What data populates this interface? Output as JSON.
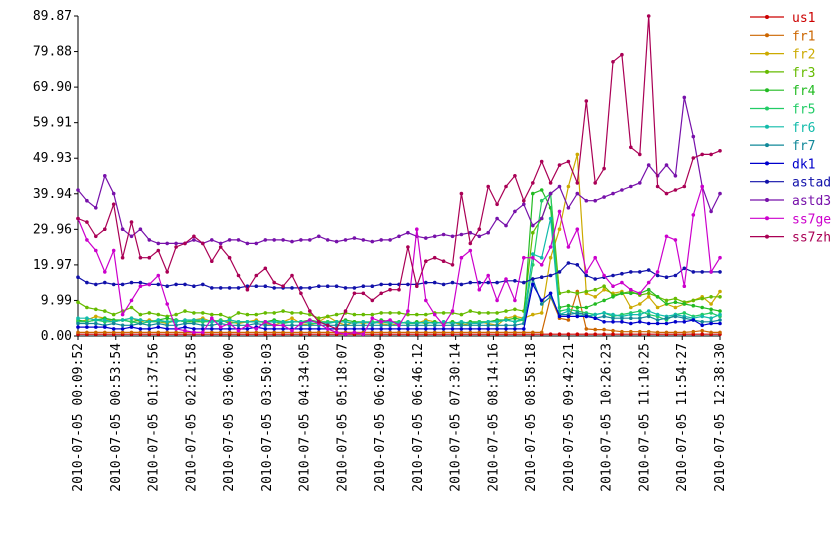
{
  "chart_data": {
    "type": "line",
    "title": "",
    "xlabel": "",
    "ylabel": "",
    "ylim": [
      0,
      89.87
    ],
    "y_ticks": [
      "0.00",
      "9.99",
      "19.97",
      "29.96",
      "39.94",
      "49.93",
      "59.91",
      "69.90",
      "79.88",
      "89.87"
    ],
    "x_tick_labels": [
      "2010-07-05 00:09:52",
      "2010-07-05 00:53:54",
      "2010-07-05 01:37:56",
      "2010-07-05 02:21:58",
      "2010-07-05 03:06:00",
      "2010-07-05 03:50:03",
      "2010-07-05 04:34:05",
      "2010-07-05 05:18:07",
      "2010-07-05 06:02:09",
      "2010-07-05 06:46:12",
      "2010-07-05 07:30:14",
      "2010-07-05 08:14:16",
      "2010-07-05 08:58:18",
      "2010-07-05 09:42:21",
      "2010-07-05 10:26:23",
      "2010-07-05 11:10:25",
      "2010-07-05 11:54:27",
      "2010-07-05 12:38:30"
    ],
    "grid": false,
    "legend_position": "right",
    "n_points": 73,
    "series": [
      {
        "name": "us1",
        "color": "#cc0000",
        "values": [
          0.5,
          0.5,
          0.5,
          0.5,
          0.5,
          0.5,
          0.5,
          0.5,
          0.5,
          0.5,
          0.5,
          0.5,
          0.5,
          0.5,
          0.5,
          0.5,
          0.5,
          0.5,
          0.5,
          0.5,
          0.5,
          0.5,
          0.5,
          0.5,
          0.5,
          0.5,
          0.5,
          0.5,
          0.5,
          0.5,
          0.5,
          0.5,
          0.5,
          0.5,
          0.5,
          0.5,
          0.5,
          0.5,
          0.5,
          0.5,
          0.5,
          0.5,
          0.5,
          0.5,
          0.5,
          0.5,
          0.5,
          0.5,
          0.5,
          0.5,
          0.5,
          0.5,
          0.5,
          0.5,
          0.5,
          0.5,
          0.5,
          0.5,
          0.5,
          0.5,
          0.5,
          0.5,
          0.5,
          0.5,
          0.5,
          0.5,
          0.5,
          0.5,
          0.5,
          0.5,
          0.5,
          0.5,
          0.5
        ]
      },
      {
        "name": "fr1",
        "color": "#cc6600",
        "values": [
          1.0,
          1.0,
          1.0,
          1.0,
          1.0,
          1.0,
          1.0,
          1.0,
          1.0,
          1.0,
          1.0,
          1.0,
          1.0,
          1.0,
          1.0,
          1.0,
          1.0,
          1.0,
          1.0,
          1.0,
          1.0,
          1.0,
          1.0,
          1.0,
          1.0,
          1.0,
          1.0,
          1.0,
          1.0,
          1.0,
          1.0,
          1.0,
          1.0,
          1.0,
          1.0,
          1.0,
          1.0,
          1.0,
          1.0,
          1.0,
          1.0,
          1.0,
          1.0,
          1.0,
          1.0,
          1.0,
          1.0,
          1.0,
          1.0,
          1.0,
          1.0,
          1.0,
          1.0,
          11.0,
          5.0,
          4.5,
          12.5,
          2.0,
          1.8,
          1.8,
          1.5,
          1.2,
          1.2,
          1.2,
          1.2,
          1.0,
          1.0,
          1.0,
          1.0,
          1.2,
          1.5,
          1.0,
          1.0
        ]
      },
      {
        "name": "fr2",
        "color": "#ccaa00",
        "values": [
          4.0,
          4.5,
          5.5,
          5.0,
          4.0,
          4.5,
          5.0,
          4.0,
          4.5,
          4.0,
          3.5,
          4.5,
          4.0,
          4.5,
          5.0,
          4.0,
          4.5,
          4.0,
          3.5,
          4.0,
          4.5,
          3.5,
          3.0,
          4.0,
          5.0,
          3.5,
          3.0,
          4.0,
          5.5,
          4.0,
          3.0,
          4.0,
          3.5,
          4.0,
          3.5,
          3.0,
          3.5,
          4.0,
          3.5,
          4.5,
          4.0,
          3.5,
          4.0,
          3.0,
          3.5,
          4.0,
          3.5,
          3.0,
          5.0,
          5.5,
          5.0,
          6.0,
          6.5,
          22.0,
          30.0,
          42.0,
          51.0,
          12.0,
          11.0,
          13.0,
          12.0,
          12.5,
          8.0,
          9.0,
          11.0,
          8.0,
          9.0,
          8.0,
          9.0,
          10.0,
          11.0,
          9.0,
          12.5
        ]
      },
      {
        "name": "fr3",
        "color": "#66bb00",
        "values": [
          9.5,
          8.0,
          7.5,
          7.0,
          6.0,
          7.0,
          8.0,
          6.0,
          6.5,
          6.0,
          5.5,
          6.0,
          7.0,
          6.5,
          6.5,
          6.0,
          6.0,
          5.0,
          6.5,
          6.0,
          6.0,
          6.5,
          6.5,
          7.0,
          6.5,
          6.5,
          6.0,
          5.0,
          5.5,
          6.0,
          6.5,
          6.0,
          6.0,
          6.0,
          6.5,
          6.5,
          6.5,
          6.0,
          6.0,
          6.0,
          6.5,
          6.5,
          6.5,
          6.0,
          7.0,
          6.5,
          6.5,
          6.5,
          7.0,
          7.5,
          7.0,
          29.0,
          33.0,
          40.0,
          12.0,
          12.5,
          12.0,
          12.5,
          13.0,
          14.0,
          11.5,
          12.0,
          12.5,
          11.5,
          12.0,
          11.0,
          10.0,
          10.5,
          9.5,
          10.0,
          10.5,
          11.0,
          11.0
        ]
      },
      {
        "name": "fr4",
        "color": "#22bb22",
        "values": [
          4.5,
          4.0,
          4.5,
          5.0,
          4.5,
          4.5,
          4.0,
          4.5,
          4.0,
          4.5,
          5.0,
          4.5,
          4.0,
          4.0,
          4.0,
          4.5,
          4.0,
          4.5,
          4.0,
          4.0,
          4.0,
          4.0,
          4.5,
          4.0,
          4.0,
          4.0,
          4.5,
          4.0,
          4.0,
          4.0,
          4.5,
          4.0,
          4.0,
          3.5,
          4.5,
          4.0,
          4.0,
          3.5,
          4.0,
          3.5,
          4.0,
          3.5,
          4.0,
          3.5,
          4.0,
          4.0,
          4.0,
          4.5,
          4.5,
          5.0,
          4.5,
          40.0,
          41.0,
          36.0,
          8.0,
          8.5,
          8.0,
          8.0,
          9.0,
          10.0,
          11.0,
          12.0,
          12.0,
          12.0,
          13.0,
          11.0,
          9.0,
          9.5,
          9.0,
          8.5,
          8.0,
          7.5,
          7.0
        ]
      },
      {
        "name": "fr5",
        "color": "#22cc66",
        "values": [
          4.0,
          4.0,
          4.5,
          4.0,
          4.0,
          4.5,
          4.0,
          3.5,
          4.0,
          4.0,
          4.0,
          4.5,
          4.0,
          4.5,
          4.0,
          4.0,
          4.5,
          3.5,
          4.0,
          4.0,
          4.0,
          4.0,
          4.0,
          3.5,
          4.0,
          4.0,
          3.5,
          3.5,
          4.0,
          4.0,
          4.0,
          3.5,
          4.0,
          4.0,
          4.0,
          3.5,
          4.0,
          3.5,
          3.5,
          4.0,
          3.5,
          4.0,
          3.5,
          4.0,
          3.5,
          4.0,
          4.0,
          4.0,
          4.5,
          4.0,
          4.5,
          20.0,
          38.0,
          40.0,
          7.0,
          7.5,
          7.0,
          6.5,
          6.0,
          6.5,
          5.5,
          6.0,
          6.5,
          7.0,
          6.0,
          5.5,
          4.5,
          6.0,
          6.5,
          5.5,
          6.0,
          6.5,
          5.5
        ]
      },
      {
        "name": "fr6",
        "color": "#11bbaa",
        "values": [
          5.0,
          5.0,
          4.5,
          4.5,
          4.0,
          4.5,
          5.0,
          4.5,
          4.0,
          4.5,
          4.0,
          4.0,
          4.5,
          4.5,
          4.5,
          4.0,
          4.0,
          4.5,
          4.0,
          4.0,
          4.0,
          4.0,
          4.0,
          4.0,
          4.0,
          4.0,
          4.0,
          4.0,
          3.5,
          4.0,
          4.0,
          3.5,
          4.0,
          3.5,
          4.0,
          4.0,
          3.5,
          4.0,
          3.5,
          4.0,
          3.5,
          4.0,
          3.5,
          4.0,
          3.5,
          3.5,
          4.0,
          4.0,
          4.5,
          4.0,
          5.0,
          23.0,
          22.0,
          33.0,
          6.0,
          7.0,
          6.0,
          5.5,
          6.0,
          6.5,
          6.0,
          5.5,
          6.0,
          6.0,
          7.0,
          6.0,
          5.5,
          6.0,
          5.5,
          5.0,
          5.5,
          5.0,
          6.0
        ]
      },
      {
        "name": "fr7",
        "color": "#118899",
        "values": [
          3.5,
          3.5,
          3.5,
          3.0,
          3.5,
          3.0,
          3.0,
          3.5,
          3.0,
          3.5,
          3.0,
          3.0,
          3.5,
          3.5,
          3.0,
          3.0,
          3.5,
          3.0,
          3.0,
          3.0,
          3.5,
          3.0,
          3.0,
          3.0,
          3.0,
          3.0,
          3.0,
          3.0,
          3.0,
          3.0,
          3.0,
          3.0,
          3.0,
          3.0,
          3.0,
          3.0,
          3.0,
          3.0,
          3.0,
          3.0,
          3.0,
          3.0,
          3.0,
          3.0,
          3.0,
          3.0,
          3.0,
          3.0,
          3.0,
          3.0,
          3.5,
          16.0,
          9.0,
          11.0,
          6.0,
          6.0,
          6.5,
          6.0,
          5.0,
          5.5,
          5.0,
          5.0,
          5.0,
          5.0,
          5.5,
          4.5,
          5.0,
          5.5,
          5.0,
          4.5,
          4.0,
          4.0,
          4.5
        ]
      },
      {
        "name": "dk1",
        "color": "#0000cc",
        "values": [
          2.5,
          2.5,
          2.5,
          2.5,
          2.0,
          2.0,
          2.5,
          2.0,
          2.0,
          2.5,
          2.0,
          2.0,
          2.5,
          2.0,
          2.0,
          2.0,
          2.0,
          2.0,
          2.0,
          2.0,
          2.5,
          2.0,
          2.0,
          2.0,
          2.0,
          2.0,
          2.0,
          2.0,
          2.0,
          2.0,
          2.0,
          2.0,
          2.0,
          2.0,
          2.0,
          2.0,
          2.0,
          2.0,
          2.0,
          2.0,
          2.0,
          2.0,
          2.0,
          2.0,
          2.0,
          2.0,
          2.0,
          2.0,
          2.0,
          2.0,
          2.0,
          14.5,
          10.0,
          12.0,
          5.5,
          5.5,
          5.5,
          5.5,
          5.0,
          4.0,
          4.0,
          4.0,
          3.5,
          4.0,
          3.5,
          3.5,
          3.5,
          4.0,
          4.0,
          4.5,
          3.0,
          3.5,
          3.5
        ]
      },
      {
        "name": "astad",
        "color": "#1111aa",
        "values": [
          16.5,
          15.0,
          14.5,
          15.0,
          14.5,
          14.5,
          15.0,
          15.0,
          14.5,
          14.5,
          14.0,
          14.5,
          14.5,
          14.0,
          14.5,
          13.5,
          13.5,
          13.5,
          13.5,
          14.0,
          14.0,
          14.0,
          13.5,
          13.5,
          13.5,
          13.5,
          13.5,
          14.0,
          14.0,
          14.0,
          13.5,
          13.5,
          14.0,
          14.0,
          14.5,
          14.5,
          14.5,
          14.5,
          14.5,
          15.0,
          15.0,
          14.5,
          15.0,
          14.5,
          15.0,
          15.0,
          15.0,
          15.0,
          15.5,
          15.5,
          15.0,
          16.0,
          16.5,
          17.0,
          18.0,
          20.5,
          20.0,
          17.0,
          16.0,
          16.5,
          17.0,
          17.5,
          18.0,
          18.0,
          18.5,
          17.0,
          16.5,
          17.0,
          19.0,
          18.0,
          18.0,
          18.0,
          18.0
        ]
      },
      {
        "name": "astd3",
        "color": "#7711aa",
        "values": [
          41.0,
          38.0,
          36.0,
          45.0,
          40.0,
          30.0,
          28.0,
          30.0,
          27.0,
          26.0,
          26.0,
          26.0,
          26.0,
          27.0,
          26.0,
          27.0,
          26.0,
          27.0,
          27.0,
          26.0,
          26.0,
          27.0,
          27.0,
          27.0,
          26.5,
          27.0,
          27.0,
          28.0,
          27.0,
          26.5,
          27.0,
          27.5,
          27.0,
          26.5,
          27.0,
          27.0,
          28.0,
          29.0,
          28.0,
          27.5,
          28.0,
          28.5,
          28.0,
          28.5,
          29.0,
          28.0,
          29.0,
          33.0,
          31.0,
          35.0,
          37.0,
          31.0,
          33.0,
          40.0,
          42.0,
          36.0,
          40.0,
          38.0,
          38.0,
          39.0,
          40.0,
          41.0,
          42.0,
          43.0,
          48.0,
          45.0,
          48.0,
          45.0,
          67.0,
          56.0,
          42.0,
          35.0,
          40.0
        ]
      },
      {
        "name": "ss7ge",
        "color": "#cc00cc",
        "values": [
          33.0,
          27.0,
          24.0,
          18.0,
          24.0,
          6.0,
          10.0,
          14.0,
          14.5,
          17.0,
          9.0,
          2.0,
          1.5,
          1.0,
          1.0,
          5.0,
          2.5,
          3.5,
          1.5,
          3.0,
          2.0,
          4.0,
          3.0,
          3.0,
          1.5,
          3.5,
          4.5,
          3.5,
          2.0,
          1.0,
          0.5,
          1.0,
          0.5,
          5.0,
          4.0,
          4.5,
          3.0,
          7.0,
          30.0,
          10.0,
          6.0,
          3.0,
          7.0,
          22.0,
          24.0,
          13.0,
          17.0,
          10.0,
          16.0,
          10.0,
          22.0,
          22.0,
          20.0,
          25.0,
          35.0,
          25.0,
          30.0,
          18.0,
          22.0,
          17.0,
          14.0,
          15.0,
          13.0,
          12.0,
          15.0,
          18.0,
          28.0,
          27.0,
          14.0,
          34.0,
          42.0,
          18.0,
          22.0
        ]
      },
      {
        "name": "ss7zh",
        "color": "#aa0055",
        "values": [
          33.0,
          32.0,
          28.0,
          30.0,
          37.0,
          22.0,
          32.0,
          22.0,
          22.0,
          24.0,
          18.0,
          25.0,
          26.0,
          28.0,
          26.0,
          21.0,
          25.0,
          22.0,
          17.0,
          13.0,
          17.0,
          19.0,
          15.0,
          14.0,
          17.0,
          12.0,
          7.0,
          4.0,
          3.0,
          2.0,
          7.0,
          12.0,
          12.0,
          10.0,
          12.0,
          13.0,
          13.0,
          25.0,
          14.0,
          21.0,
          22.0,
          21.0,
          20.0,
          40.0,
          26.0,
          30.0,
          42.0,
          37.0,
          42.0,
          45.0,
          38.0,
          43.0,
          49.0,
          43.0,
          48.0,
          49.0,
          43.0,
          66.0,
          43.0,
          47.0,
          77.0,
          79.0,
          53.0,
          51.0,
          90.0,
          42.0,
          40.0,
          41.0,
          42.0,
          50.0,
          51.0,
          51.0,
          52.0
        ]
      }
    ]
  }
}
